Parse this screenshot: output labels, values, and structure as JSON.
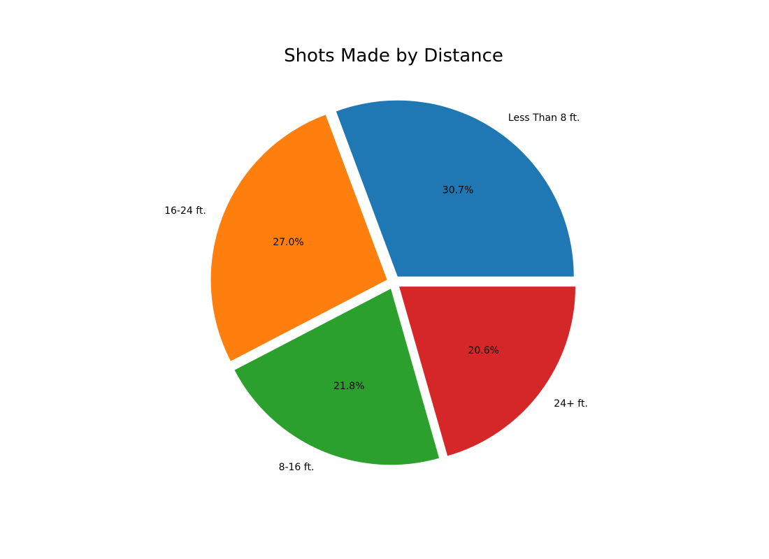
{
  "chart_data": {
    "type": "pie",
    "title": "Shots Made by Distance",
    "labels": [
      "Less Than 8 ft.",
      "16-24 ft.",
      "8-16 ft.",
      "24+ ft."
    ],
    "values": [
      30.7,
      27.0,
      21.8,
      20.6
    ],
    "percent_labels": [
      "30.7%",
      "27.0%",
      "21.8%",
      "20.6%"
    ],
    "colors": [
      "#1f77b4",
      "#ff7f0e",
      "#2ca02c",
      "#d62728"
    ],
    "start_angle_deg": 0,
    "direction": "counterclockwise",
    "exploded": true
  }
}
